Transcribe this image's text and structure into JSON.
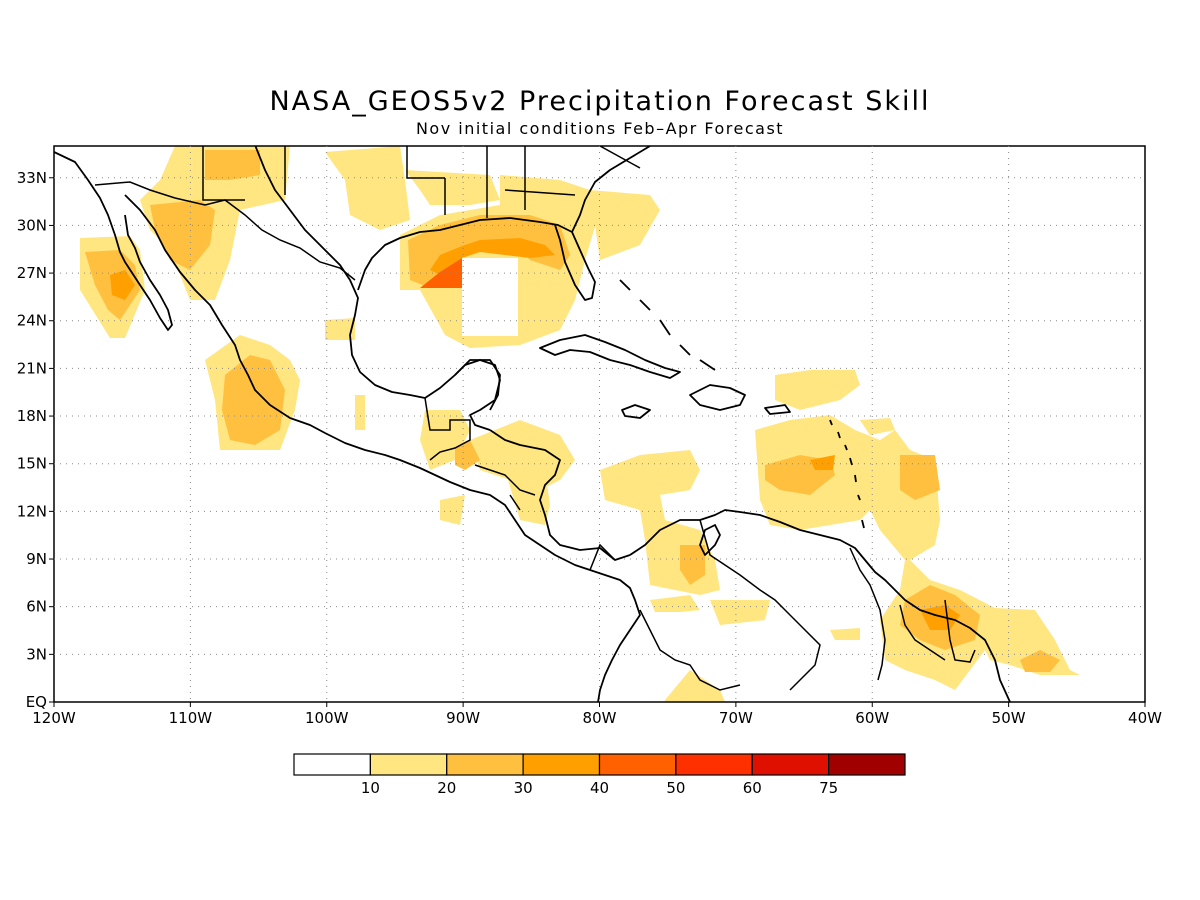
{
  "title": "NASA_GEOS5v2 Precipitation Forecast Skill",
  "subtitle": "Nov initial conditions  Feb–Apr Forecast",
  "map": {
    "lon_range": [
      -120,
      -40
    ],
    "lat_range": [
      0,
      35
    ],
    "lon_ticks": [
      "120W",
      "110W",
      "100W",
      "90W",
      "80W",
      "70W",
      "60W",
      "50W",
      "40W"
    ],
    "lat_ticks": [
      "EQ",
      "3N",
      "6N",
      "9N",
      "12N",
      "15N",
      "18N",
      "21N",
      "24N",
      "27N",
      "30N",
      "33N"
    ],
    "grid": "dotted"
  },
  "colorbar": {
    "labels": [
      "10",
      "20",
      "30",
      "40",
      "50",
      "60",
      "75"
    ],
    "colors": [
      "#ffffff",
      "#ffe680",
      "#ffc040",
      "#ffa000",
      "#ff6000",
      "#ff3000",
      "#e01000",
      "#a00000"
    ]
  }
}
